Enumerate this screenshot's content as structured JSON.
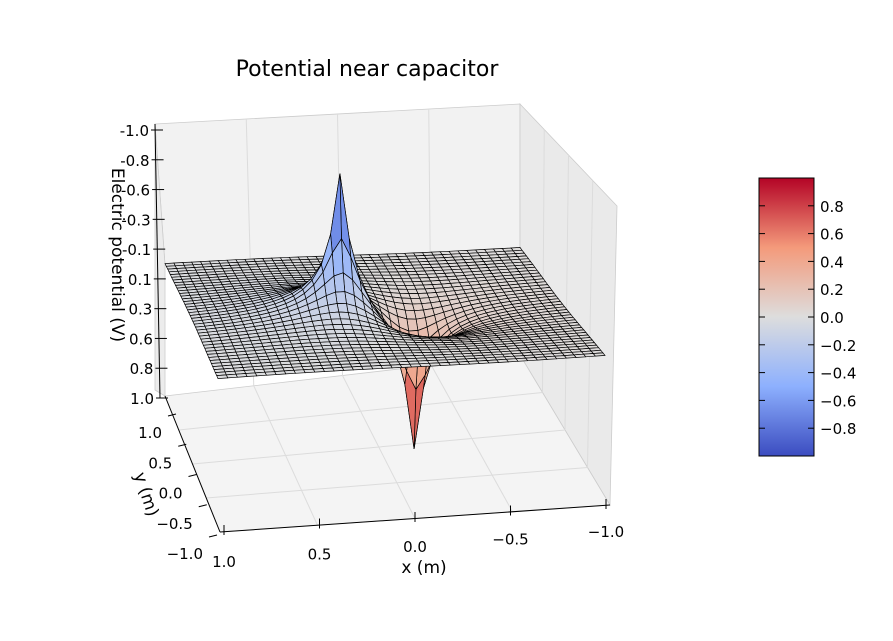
{
  "chart_data": {
    "type": "surface3d",
    "title": "Potential near capacitor",
    "xlabel": "x (m)",
    "ylabel": "y (m)",
    "zlabel": "Electric potential (V)",
    "xlim": [
      -1.0,
      1.0
    ],
    "ylim": [
      -1.0,
      1.0
    ],
    "zlim": [
      -1.0,
      1.0
    ],
    "z_inverted": true,
    "x_tick_labels": [
      "1.0",
      "0.5",
      "0.0",
      "−0.5",
      "−1.0"
    ],
    "y_tick_labels": [
      "−1.0",
      "−0.5",
      "0.0",
      "0.5",
      "1.0"
    ],
    "z_tick_labels": [
      "-1.0",
      "-0.8",
      "-0.6",
      "-0.3",
      "-0.1",
      "0.1",
      "0.3",
      "0.6",
      "0.8",
      "1.0"
    ],
    "grid": true,
    "surface": {
      "description": "Dipole potential: negative peak near (x=0.2, y=0), positive peak near (x=-0.2, y=0)",
      "negative_peak": {
        "x": 0.2,
        "y": 0.0,
        "value": -1.0
      },
      "positive_peak": {
        "x": -0.2,
        "y": 0.0,
        "value": 1.0
      },
      "colormap": "coolwarm",
      "edgecolor": "#000000"
    },
    "colorbar": {
      "range": [
        -1.0,
        1.0
      ],
      "tick_labels": [
        "0.8",
        "0.6",
        "0.4",
        "0.2",
        "0.0",
        "−0.2",
        "−0.4",
        "−0.6",
        "−0.8"
      ],
      "tick_values": [
        0.8,
        0.6,
        0.4,
        0.2,
        0.0,
        -0.2,
        -0.4,
        -0.6,
        -0.8
      ],
      "placement": "right"
    }
  }
}
